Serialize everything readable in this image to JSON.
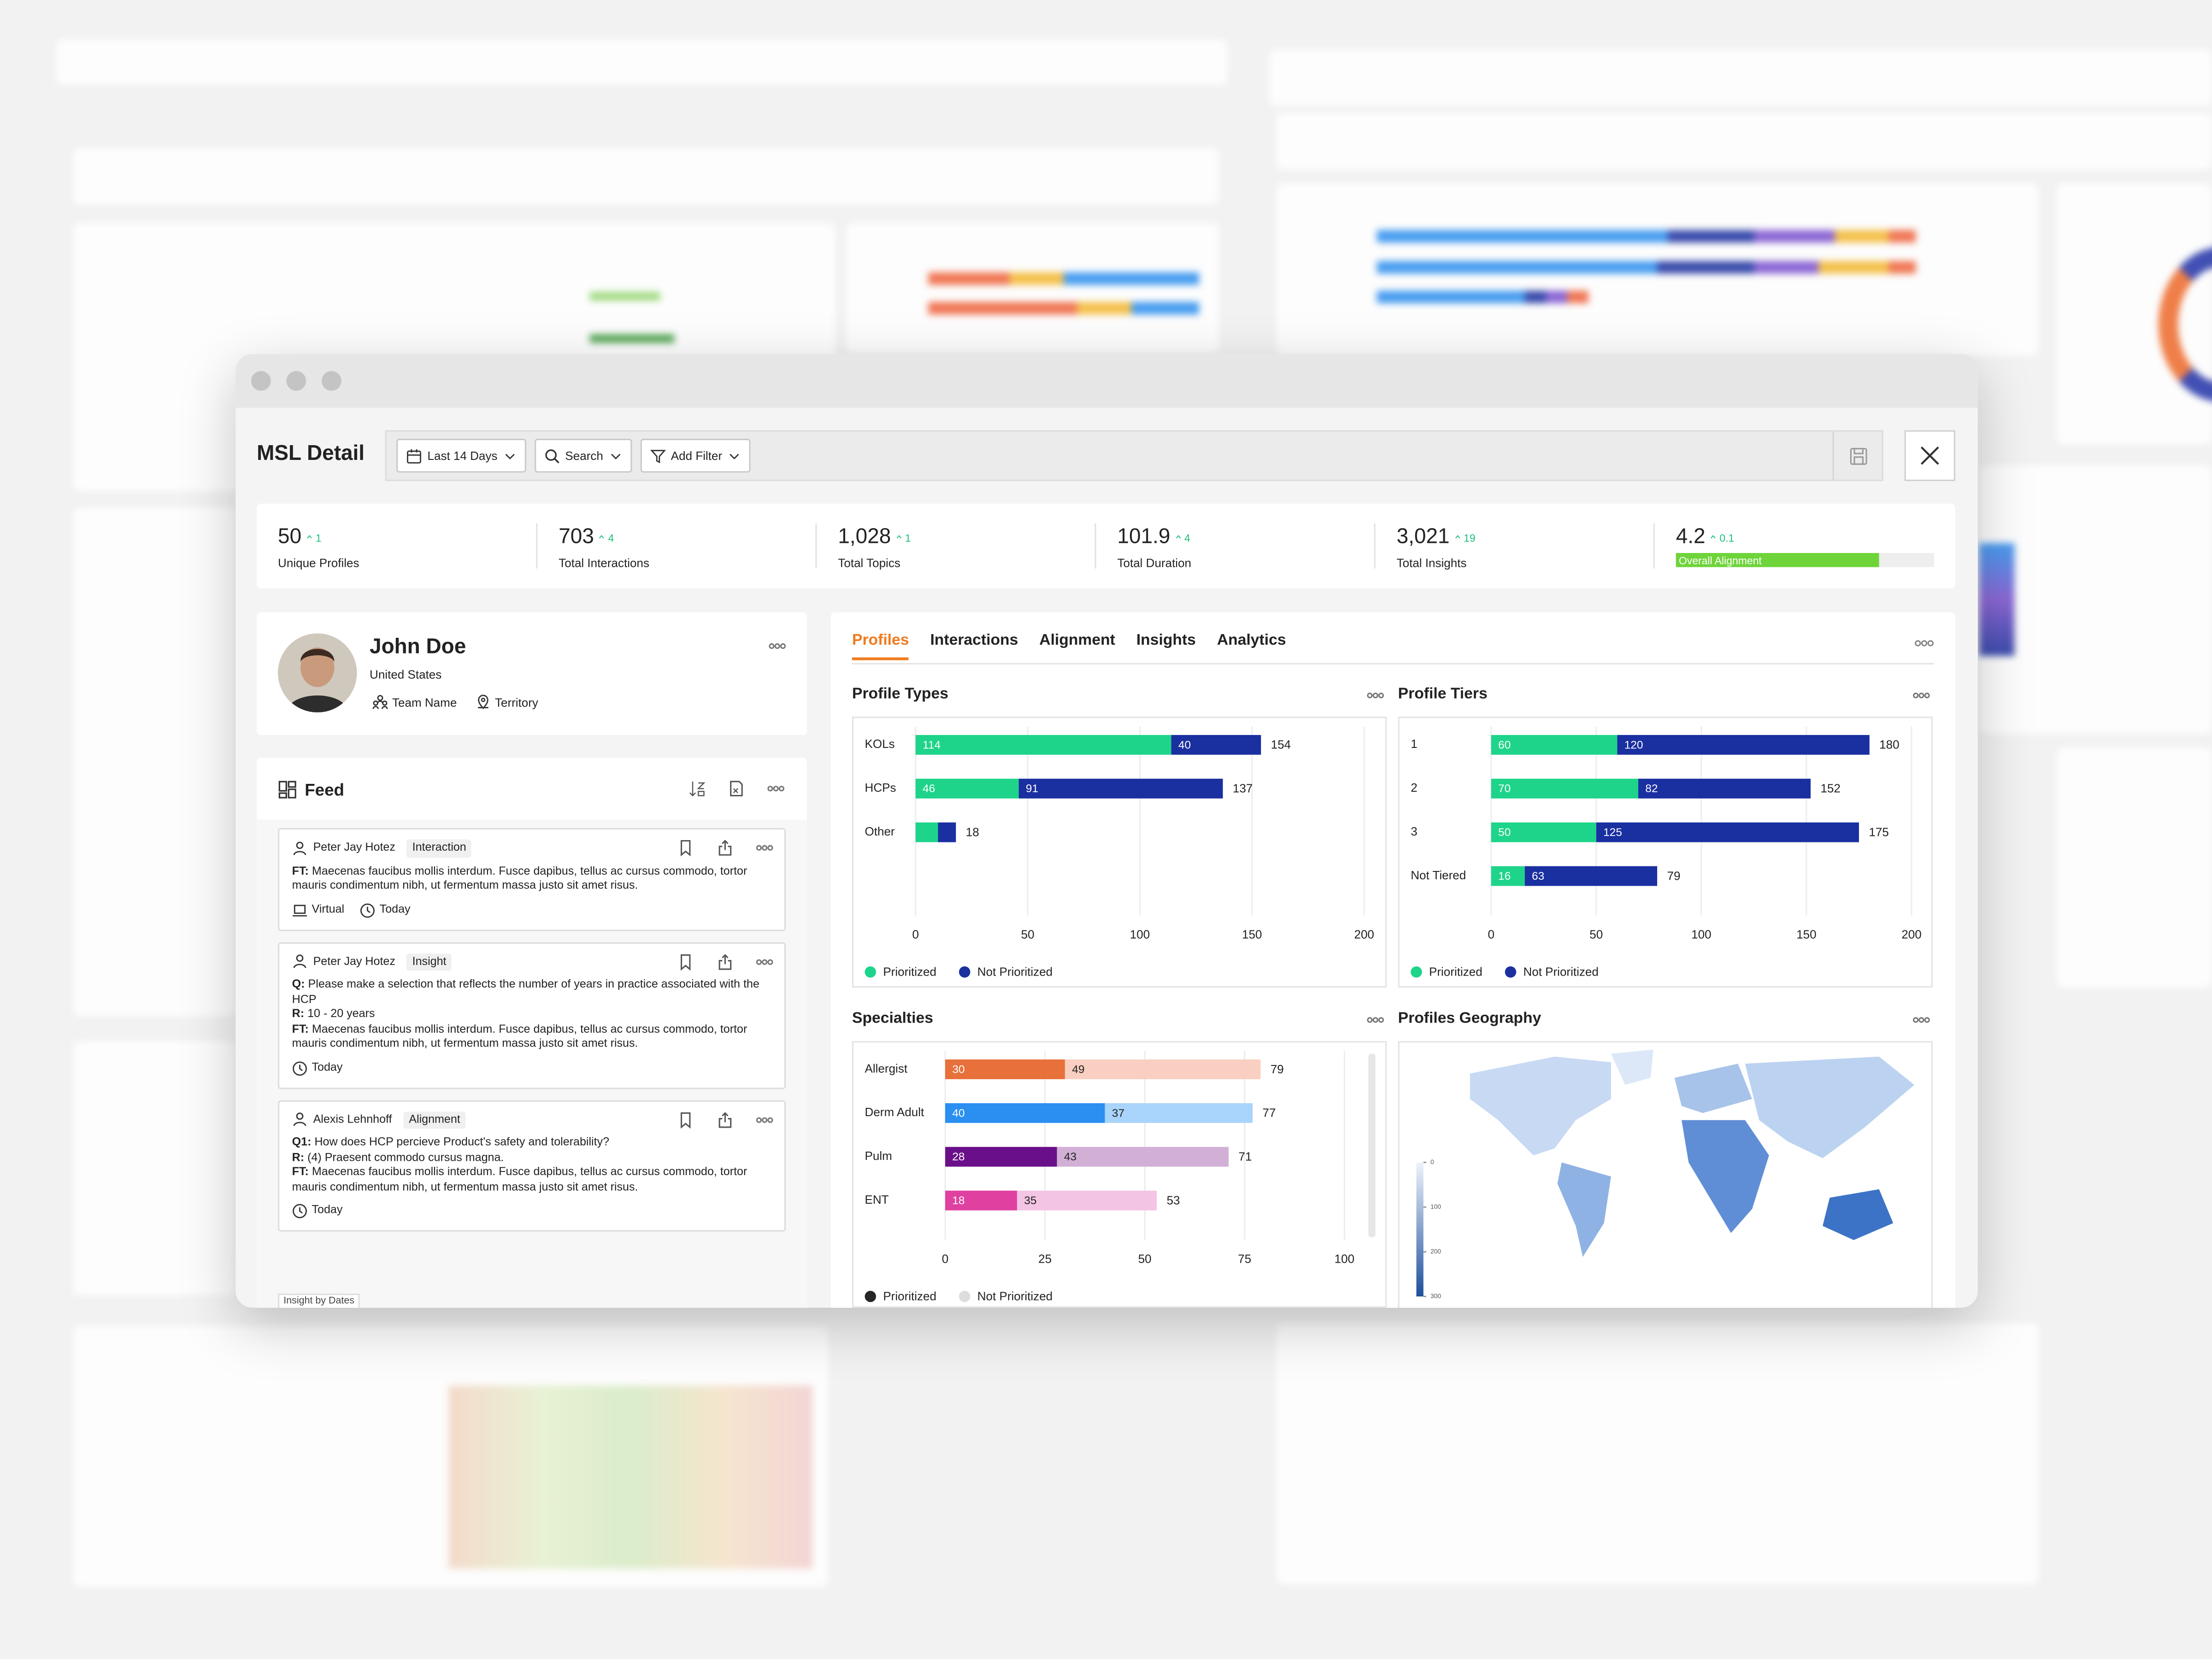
{
  "window": {
    "title": "MSL Detail",
    "filters": [
      "Last 14 Days",
      "Search",
      "Add Filter"
    ]
  },
  "kpis": [
    {
      "value": "50",
      "delta": "1",
      "label": "Unique Profiles"
    },
    {
      "value": "703",
      "delta": "4",
      "label": "Total Interactions"
    },
    {
      "value": "1,028",
      "delta": "1",
      "label": "Total Topics"
    },
    {
      "value": "101.9",
      "delta": "4",
      "label": "Total Duration"
    },
    {
      "value": "3,021",
      "delta": "19",
      "label": "Total Insights"
    },
    {
      "value": "4.2",
      "delta": "0.1",
      "label": "Overall Alignment"
    }
  ],
  "profile": {
    "name": "John Doe",
    "country": "United States",
    "team": "Team Name",
    "territory": "Territory"
  },
  "feed": {
    "title": "Feed",
    "items": [
      {
        "author": "Peter Jay Hotez",
        "tag": "Interaction",
        "lines": [
          {
            "prefix": "FT:",
            "text": "Maecenas faucibus mollis interdum. Fusce dapibus, tellus ac cursus commodo, tortor mauris condimentum nibh, ut fermentum massa justo sit amet risus."
          }
        ],
        "meta": [
          "Virtual",
          "Today"
        ]
      },
      {
        "author": "Peter Jay Hotez",
        "tag": "Insight",
        "lines": [
          {
            "prefix": "Q:",
            "text": "Please make a selection that reflects the number of years in practice associated with the HCP"
          },
          {
            "prefix": "R:",
            "text": "10 - 20 years"
          },
          {
            "prefix": "FT:",
            "text": "Maecenas faucibus mollis interdum. Fusce dapibus, tellus ac cursus commodo, tortor mauris condimentum nibh, ut fermentum massa justo sit amet risus."
          }
        ],
        "meta": [
          "Today"
        ]
      },
      {
        "author": "Alexis Lehnhoff",
        "tag": "Alignment",
        "lines": [
          {
            "prefix": "Q1:",
            "text": "How does HCP percieve Product's safety and tolerability?"
          },
          {
            "prefix": "R:",
            "text": "(4) Praesent commodo cursus magna."
          },
          {
            "prefix": "FT:",
            "text": "Maecenas faucibus mollis interdum. Fusce dapibus, tellus ac cursus commodo, tortor mauris condimentum nibh, ut fermentum massa justo sit amet risus."
          }
        ],
        "meta": [
          "Today"
        ]
      }
    ],
    "footer": "Insight by Dates"
  },
  "tabs": {
    "items": [
      "Profiles",
      "Interactions",
      "Alignment",
      "Insights",
      "Analytics"
    ],
    "active": 0
  },
  "chart_data": [
    {
      "type": "bar",
      "orientation": "horizontal",
      "stacked": true,
      "title": "Profile Types",
      "categories": [
        "KOLs",
        "HCPs",
        "Other"
      ],
      "series": [
        {
          "name": "Prioritized",
          "color": "#1ed48a",
          "values": [
            114,
            46,
            10
          ]
        },
        {
          "name": "Not Prioritized",
          "color": "#1a2fa0",
          "values": [
            40,
            91,
            8
          ]
        }
      ],
      "totals": [
        154,
        137,
        18
      ],
      "xlim": [
        0,
        200
      ],
      "xticks": [
        0,
        50,
        100,
        150,
        200
      ],
      "grid": true
    },
    {
      "type": "bar",
      "orientation": "horizontal",
      "stacked": true,
      "title": "Profile Tiers",
      "categories": [
        "1",
        "2",
        "3",
        "Not Tiered"
      ],
      "series": [
        {
          "name": "Prioritized",
          "color": "#1ed48a",
          "values": [
            60,
            70,
            50,
            16
          ]
        },
        {
          "name": "Not Prioritized",
          "color": "#1a2fa0",
          "values": [
            120,
            82,
            125,
            63
          ]
        }
      ],
      "totals": [
        180,
        152,
        175,
        79
      ],
      "xlim": [
        0,
        200
      ],
      "xticks": [
        0,
        50,
        100,
        150,
        200
      ],
      "grid": true
    },
    {
      "type": "bar",
      "orientation": "horizontal",
      "stacked": true,
      "title": "Specialties",
      "categories": [
        "Allergist",
        "Derm Adult",
        "Pulm",
        "ENT"
      ],
      "series": [
        {
          "name": "Prioritized",
          "color": "#262626",
          "values": [
            30,
            40,
            28,
            18
          ]
        },
        {
          "name": "Not Prioritized",
          "color": "#dddddd",
          "values": [
            49,
            37,
            43,
            35
          ]
        }
      ],
      "category_colors": [
        [
          "#e8703a",
          "#f8cfc0"
        ],
        [
          "#2a8ff0",
          "#a9d4fb"
        ],
        [
          "#6a0f8a",
          "#d2b0d6"
        ],
        [
          "#e040a0",
          "#f4c4e4"
        ]
      ],
      "totals": [
        79,
        77,
        71,
        53
      ],
      "xlim": [
        0,
        100
      ],
      "xticks": [
        0,
        25,
        50,
        75,
        100
      ],
      "grid": true
    },
    {
      "type": "map",
      "title": "Profiles Geography",
      "clim": [
        0,
        300
      ],
      "colorbar_ticks": [
        0,
        100,
        200,
        300
      ]
    }
  ]
}
